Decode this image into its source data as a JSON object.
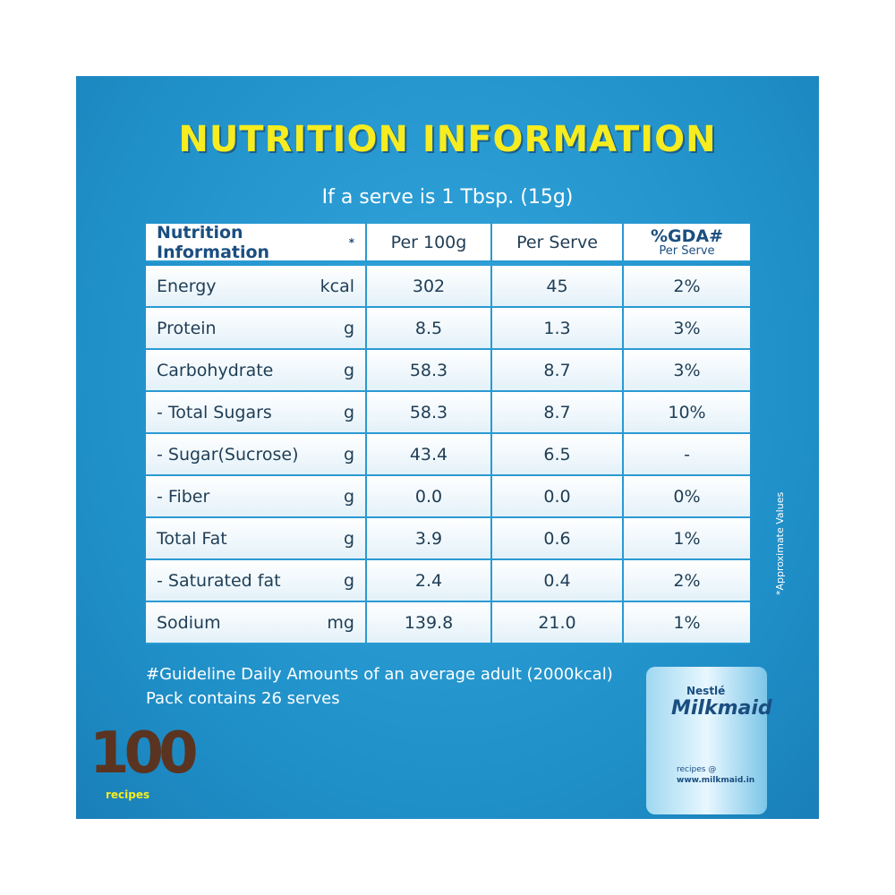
{
  "header": {
    "title": "NUTRITION INFORMATION",
    "subtitle": "If a serve is 1 Tbsp. (15g)"
  },
  "table": {
    "columns": [
      "Nutrition Information",
      "Per 100g",
      "Per Serve",
      "%GDA#"
    ],
    "header_mark": "*",
    "gda_note": "Per Serve",
    "rows": [
      [
        "Energy",
        "kcal",
        "302",
        "45",
        "2%"
      ],
      [
        "Protein",
        "g",
        "8.5",
        "1.3",
        "3%"
      ],
      [
        "Carbohydrate",
        "g",
        "58.3",
        "8.7",
        "3%"
      ],
      [
        "- Total Sugars",
        "g",
        "58.3",
        "8.7",
        "10%"
      ],
      [
        "- Sugar(Sucrose)",
        "g",
        "43.4",
        "6.5",
        "-"
      ],
      [
        "- Fiber",
        "g",
        "0.0",
        "0.0",
        "0%"
      ],
      [
        "Total Fat",
        "g",
        "3.9",
        "0.6",
        "1%"
      ],
      [
        "- Saturated fat",
        "g",
        "2.4",
        "0.4",
        "2%"
      ],
      [
        "Sodium",
        "mg",
        "139.8",
        "21.0",
        "1%"
      ]
    ]
  },
  "footnotes": [
    "#Guideline Daily Amounts of an average adult (2000kcal)",
    "Pack contains 26 serves"
  ],
  "side_note": "*Approximate Values",
  "logo": {
    "number": "100",
    "label": "recipes"
  },
  "can": {
    "brand": "Nestlé",
    "name": "Milkmaid",
    "site_prefix": "recipes @",
    "site": "www.milkmaid.in"
  }
}
